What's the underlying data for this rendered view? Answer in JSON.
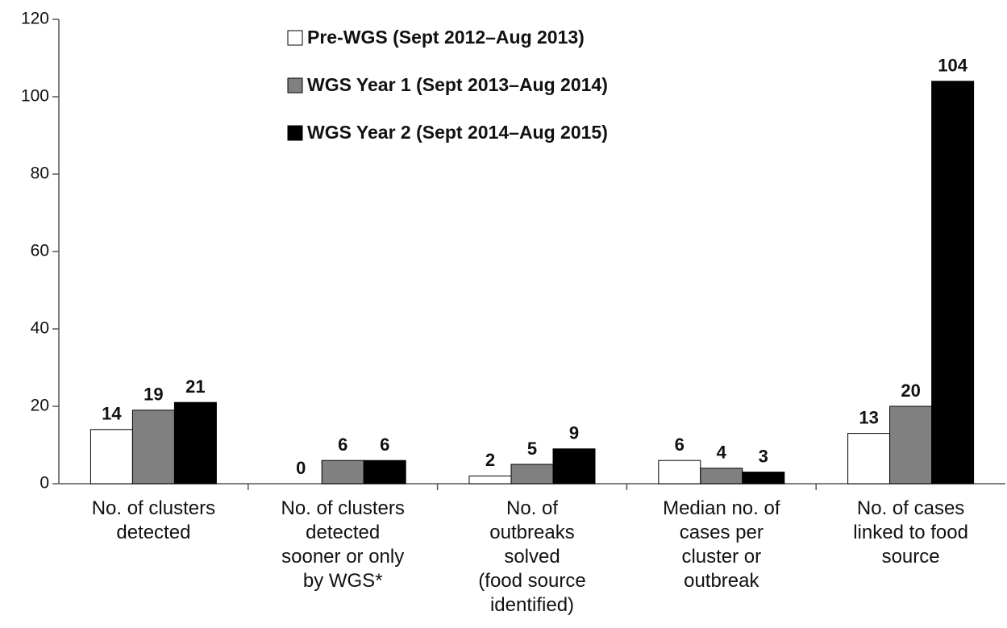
{
  "chart_data": {
    "type": "grouped_bar",
    "categories": [
      "No. of clusters\ndetected",
      "No. of clusters\ndetected\nsooner or only\nby WGS*",
      "No. of\noutbreaks\nsolved\n(food source\nidentified)",
      "Median no. of\ncases per\ncluster or\noutbreak",
      "No. of cases\nlinked to food\nsource"
    ],
    "series": [
      {
        "name": "Pre-WGS (Sept 2012–Aug 2013)",
        "color": "#ffffff",
        "values": [
          14,
          0,
          2,
          6,
          13
        ]
      },
      {
        "name": "WGS Year 1 (Sept 2013–Aug 2014)",
        "color": "#808080",
        "values": [
          19,
          6,
          5,
          4,
          20
        ]
      },
      {
        "name": "WGS Year 2 (Sept 2014–Aug 2015)",
        "color": "#000000",
        "values": [
          21,
          6,
          9,
          3,
          104
        ]
      }
    ],
    "ylim": [
      0,
      120
    ],
    "yticks": [
      0,
      20,
      40,
      60,
      80,
      100,
      120
    ]
  }
}
